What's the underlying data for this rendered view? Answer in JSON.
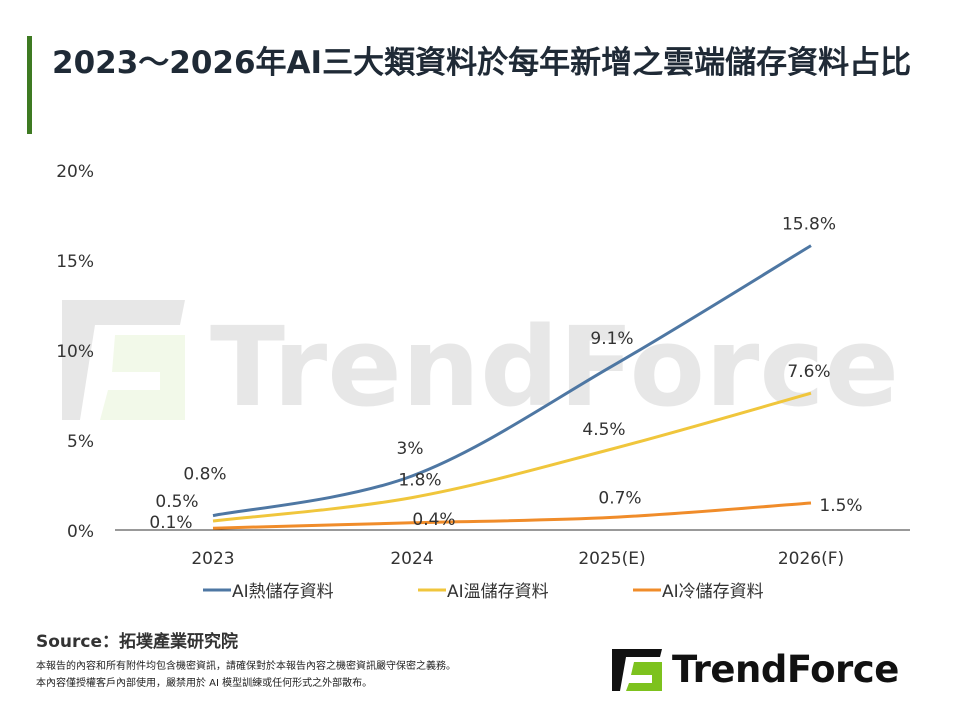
{
  "title": "2023～2026年AI三大類資料於每年新增之雲端儲存資料占比",
  "chart_data": {
    "type": "line",
    "title": "2023～2026年AI三大類資料於每年新增之雲端儲存資料占比",
    "categories": [
      "2023",
      "2024",
      "2025(E)",
      "2026(F)"
    ],
    "y_ticks": [
      "0%",
      "5%",
      "10%",
      "15%",
      "20%"
    ],
    "ylim": [
      0,
      20
    ],
    "grid": false,
    "legend_position": "bottom",
    "series": [
      {
        "name": "AI熱儲存資料",
        "values": [
          0.8,
          3,
          9.1,
          15.8
        ],
        "labels": [
          "0.8%",
          "3%",
          "9.1%",
          "15.8%"
        ],
        "color": "#4e77a3"
      },
      {
        "name": "AI溫儲存資料",
        "values": [
          0.5,
          1.8,
          4.5,
          7.6
        ],
        "labels": [
          "0.5%",
          "1.8%",
          "4.5%",
          "7.6%"
        ],
        "color": "#f0c63c"
      },
      {
        "name": "AI冷儲存資料",
        "values": [
          0.1,
          0.4,
          0.7,
          1.5
        ],
        "labels": [
          "0.1%",
          "0.4%",
          "0.7%",
          "1.5%"
        ],
        "color": "#f08c2a"
      }
    ]
  },
  "watermark": "TrendForce",
  "source": "Source：拓墣產業研究院",
  "notes": [
    "本報告的內容和所有附件均包含機密資訊，請確保對於本報告內容之機密資訊嚴守保密之義務。",
    "本內容僅授權客戶內部使用，嚴禁用於 AI 模型訓練或任何形式之外部散布。"
  ],
  "logo": "TrendForce",
  "colors": {
    "accent": "#3e7a22",
    "logo_green": "#7dc21e"
  }
}
